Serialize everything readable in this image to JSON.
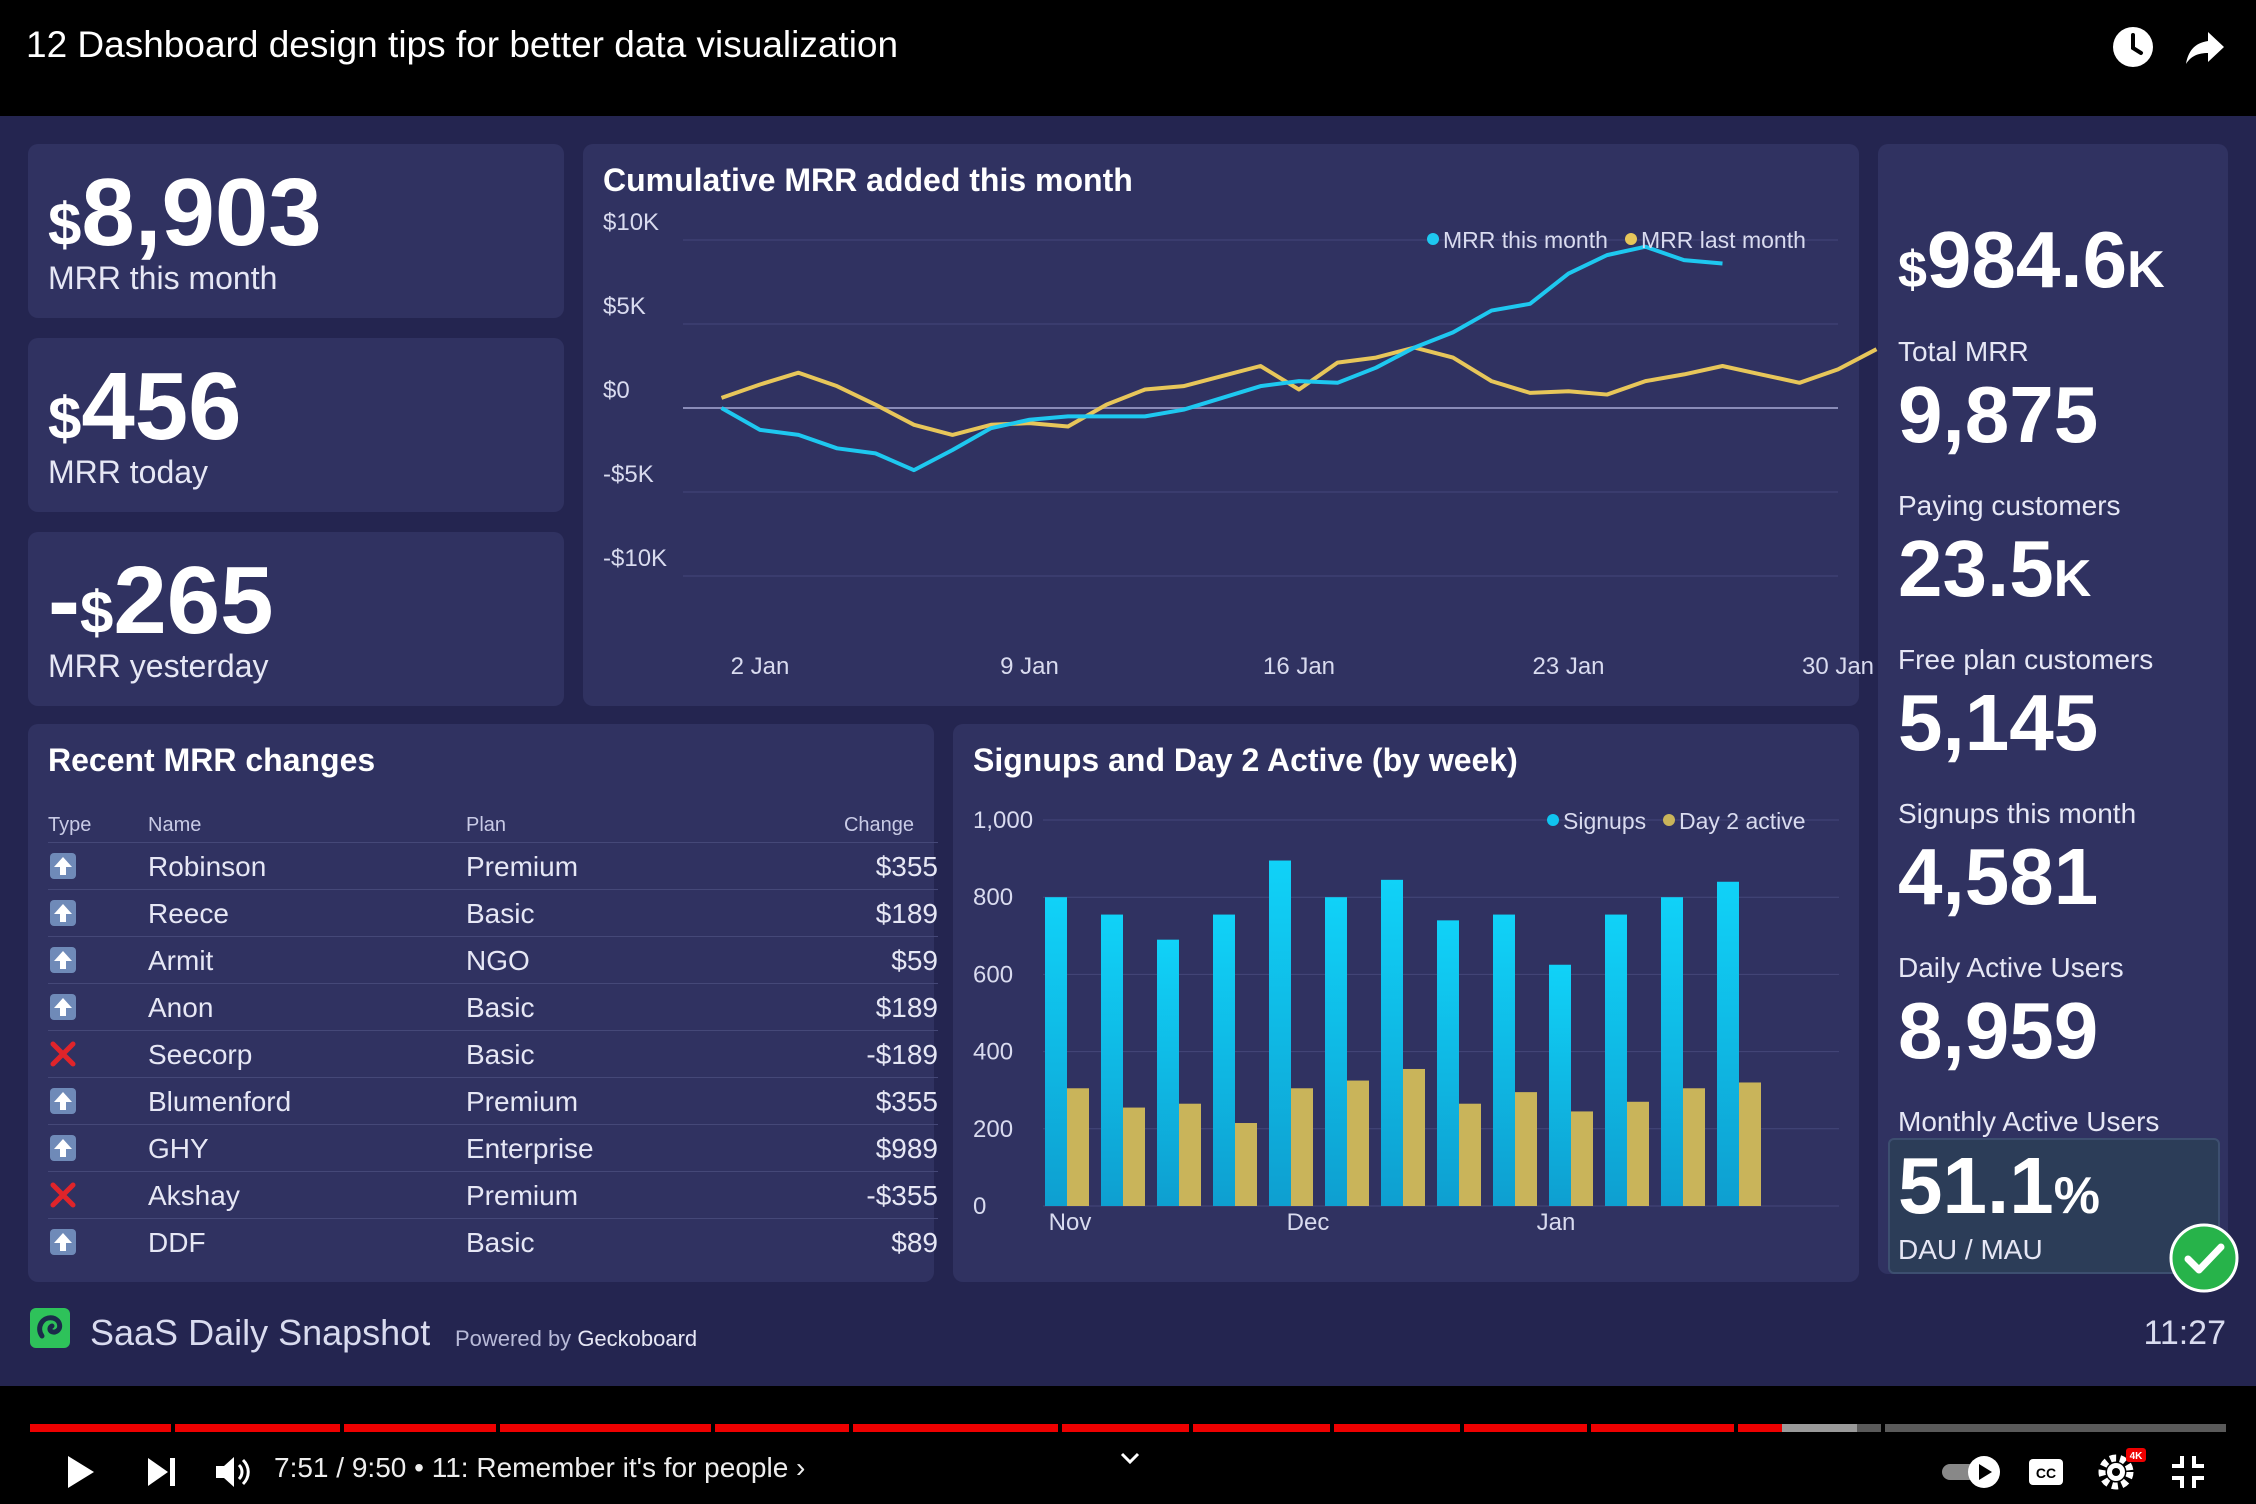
{
  "video": {
    "title": "12 Dashboard design tips for better data visualization",
    "watch_later_icon": "clock-icon",
    "share_icon": "share-icon"
  },
  "kpis_left": [
    {
      "prefix": "",
      "currency": "$",
      "value": "8,903",
      "label": "MRR this month"
    },
    {
      "prefix": "",
      "currency": "$",
      "value": "456",
      "label": "MRR today"
    },
    {
      "prefix": "-",
      "currency": "$",
      "value": "265",
      "label": "MRR yesterday"
    }
  ],
  "chart_data": [
    {
      "type": "line",
      "title": "Cumulative MRR added this month",
      "x_ticks": [
        "2 Jan",
        "9 Jan",
        "16 Jan",
        "23 Jan",
        "30 Jan"
      ],
      "y_ticks": [
        "$10K",
        "$5K",
        "$0",
        "-$5K",
        "-$10K"
      ],
      "ylim": [
        -10000,
        10000
      ],
      "xlim": [
        0,
        30
      ],
      "legend_position": "top-right",
      "series": [
        {
          "name": "MRR this month",
          "color": "#1ec8f0",
          "x": [
            1,
            2,
            3,
            4,
            5,
            6,
            7,
            8,
            9,
            10,
            11,
            12,
            13,
            14,
            15,
            16,
            17,
            18,
            19,
            20,
            21,
            22,
            23,
            24,
            25,
            26,
            27
          ],
          "values": [
            0,
            -1300,
            -1600,
            -2400,
            -2700,
            -3700,
            -2500,
            -1200,
            -700,
            -500,
            -500,
            -500,
            -100,
            600,
            1300,
            1600,
            1500,
            2400,
            3600,
            4500,
            5800,
            6200,
            8000,
            9100,
            9600,
            8800,
            8600
          ]
        },
        {
          "name": "MRR last month",
          "color": "#e7c65a",
          "x": [
            1,
            2,
            3,
            4,
            5,
            6,
            7,
            8,
            9,
            10,
            11,
            12,
            13,
            14,
            15,
            16,
            17,
            18,
            19,
            20,
            21,
            22,
            23,
            24,
            25,
            26,
            27,
            28,
            29,
            30,
            31
          ],
          "values": [
            600,
            1400,
            2100,
            1300,
            200,
            -1000,
            -1600,
            -1000,
            -900,
            -1100,
            200,
            1100,
            1300,
            1900,
            2500,
            1100,
            2700,
            3000,
            3600,
            3000,
            1600,
            900,
            1000,
            800,
            1600,
            2000,
            2500,
            2000,
            1500,
            2300,
            3500
          ]
        }
      ]
    },
    {
      "type": "bar",
      "title": "Signups and Day 2 Active (by week)",
      "x_ticks": [
        "Nov",
        "Dec",
        "Jan"
      ],
      "y_ticks": [
        "1,000",
        "800",
        "600",
        "400",
        "200",
        "0"
      ],
      "ylim": [
        0,
        1000
      ],
      "legend_position": "top-right",
      "series": [
        {
          "name": "Signups",
          "color": "#10c4f0",
          "values": [
            800,
            755,
            690,
            755,
            895,
            800,
            845,
            740,
            755,
            625,
            755,
            800,
            840
          ]
        },
        {
          "name": "Day 2 active",
          "color": "#c9b45a",
          "values": [
            305,
            255,
            265,
            215,
            305,
            325,
            355,
            265,
            295,
            245,
            270,
            305,
            320
          ]
        }
      ]
    }
  ],
  "mrr_table": {
    "title": "Recent MRR changes",
    "headers": {
      "type": "Type",
      "name": "Name",
      "plan": "Plan",
      "change": "Change"
    },
    "rows": [
      {
        "type": "up",
        "name": "Robinson",
        "plan": "Premium",
        "change": "$355"
      },
      {
        "type": "up",
        "name": "Reece",
        "plan": "Basic",
        "change": "$189"
      },
      {
        "type": "up",
        "name": "Armit",
        "plan": "NGO",
        "change": "$59"
      },
      {
        "type": "up",
        "name": "Anon",
        "plan": "Basic",
        "change": "$189"
      },
      {
        "type": "cancel",
        "name": "Seecorp",
        "plan": "Basic",
        "change": "-$189"
      },
      {
        "type": "up",
        "name": "Blumenford",
        "plan": "Premium",
        "change": "$355"
      },
      {
        "type": "up",
        "name": "GHY",
        "plan": "Enterprise",
        "change": "$989"
      },
      {
        "type": "cancel",
        "name": "Akshay",
        "plan": "Premium",
        "change": "-$355"
      },
      {
        "type": "up",
        "name": "DDF",
        "plan": "Basic",
        "change": "$89"
      }
    ]
  },
  "kpis_right": [
    {
      "currency": "$",
      "value": "984.6",
      "suffix": "K",
      "label": "Total MRR"
    },
    {
      "currency": "",
      "value": "9,875",
      "suffix": "",
      "label": "Paying customers"
    },
    {
      "currency": "",
      "value": "23.5",
      "suffix": "K",
      "label": "Free plan customers"
    },
    {
      "currency": "",
      "value": "5,145",
      "suffix": "",
      "label": "Signups this month"
    },
    {
      "currency": "",
      "value": "4,581",
      "suffix": "",
      "label": "Daily Active Users"
    },
    {
      "currency": "",
      "value": "8,959",
      "suffix": "",
      "label": "Monthly Active Users"
    }
  ],
  "goal": {
    "value": "51.1",
    "suffix": "%",
    "label": "DAU / MAU",
    "status_icon": "check-circle-icon"
  },
  "footer": {
    "title": "SaaS Daily Snapshot",
    "powered_prefix": "Powered by",
    "powered_brand": "Geckoboard",
    "clock": "11:27"
  },
  "player": {
    "current_time": "7:51",
    "duration": "9:50",
    "chapter": "11: Remember it's for people",
    "progress_fraction": 0.798,
    "buffer_fraction": 0.832
  }
}
